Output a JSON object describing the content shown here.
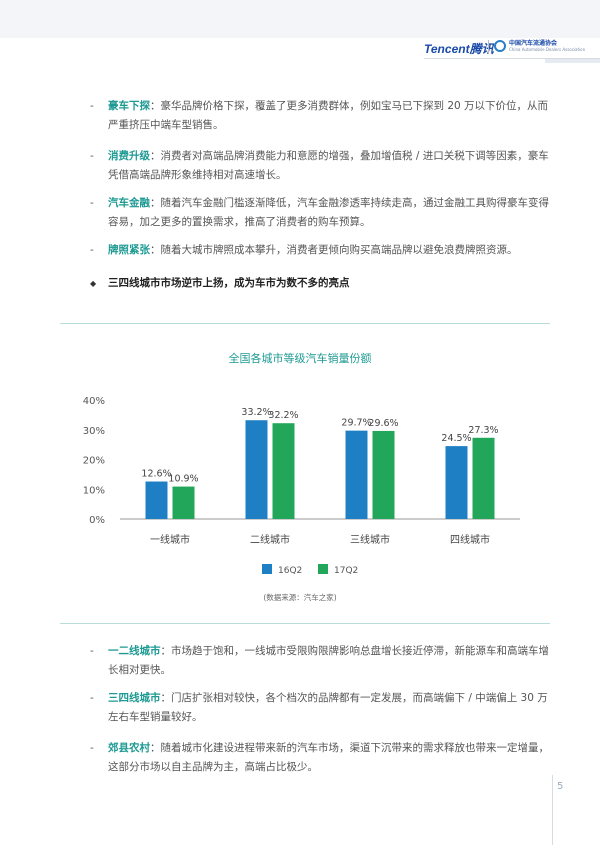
{
  "header": {
    "tencent_logo": "Tencent腾讯",
    "assoc_logo": "中国汽车流通协会",
    "assoc_logo_sub": "China Automobile Dealers Association"
  },
  "top_bullets": [
    {
      "keyword": "豪车下探",
      "text": "：豪华品牌价格下探，覆盖了更多消费群体，例如宝马已下探到 20 万以下价位，从而严重挤压中端车型销售。"
    },
    {
      "keyword": "消费升级",
      "text": "：消费者对高端品牌消费能力和意愿的增强，叠加增值税 / 进口关税下调等因素，豪车凭借高端品牌形象维持相对高速增长。"
    },
    {
      "keyword": "汽车金融",
      "text": "：随着汽车金融门槛逐渐降低，汽车金融渗透率持续走高，通过金融工具购得豪车变得容易，加之更多的置换需求，推高了消费者的购车预算。"
    },
    {
      "keyword": "牌照紧张",
      "text": "：随着大城市牌照成本攀升，消费者更倾向购买高端品牌以避免浪费牌照资源。"
    }
  ],
  "highlight": "三四线城市市场逆市上扬，成为车市为数不多的亮点",
  "chart_data": {
    "type": "bar",
    "title": "全国各城市等级汽车销量份额",
    "categories": [
      "一线城市",
      "二线城市",
      "三线城市",
      "四线城市"
    ],
    "series": [
      {
        "name": "16Q2",
        "color": "#1f7fc4",
        "values": [
          12.6,
          33.2,
          29.7,
          24.5
        ],
        "labels": [
          "12.6%",
          "33.2%",
          "29.7%",
          "24.5%"
        ]
      },
      {
        "name": "17Q2",
        "color": "#22a65a",
        "values": [
          10.9,
          32.2,
          29.6,
          27.3
        ],
        "labels": [
          "10.9%",
          "32.2%",
          "29.6%",
          "27.3%"
        ]
      }
    ],
    "ylim": [
      0,
      40
    ],
    "yticks": [
      0,
      10,
      20,
      30,
      40
    ],
    "ytick_labels": [
      "0%",
      "10%",
      "20%",
      "30%",
      "40%"
    ],
    "grid": false,
    "legend": "bottom",
    "xlabel": "",
    "ylabel": ""
  },
  "source": "(数据来源：汽车之家)",
  "bottom_bullets": [
    {
      "keyword": "一二线城市",
      "text": "：市场趋于饱和，一线城市受限购限牌影响总盘增长接近停滞，新能源车和高端车增长相对更快。"
    },
    {
      "keyword": "三四线城市",
      "text": "：门店扩张相对较快，各个档次的品牌都有一定发展，而高端偏下 / 中端偏上 30 万左右车型销量较好。"
    },
    {
      "keyword": "郊县农村",
      "text": "：随着城市化建设进程带来新的汽车市场，渠道下沉带来的需求释放也带来一定增量，这部分市场以自主品牌为主，高端占比极少。"
    }
  ],
  "page_number": "5",
  "colors": {
    "accent": "#1e9a93",
    "bar1": "#1f7fc4",
    "bar2": "#22a65a"
  }
}
